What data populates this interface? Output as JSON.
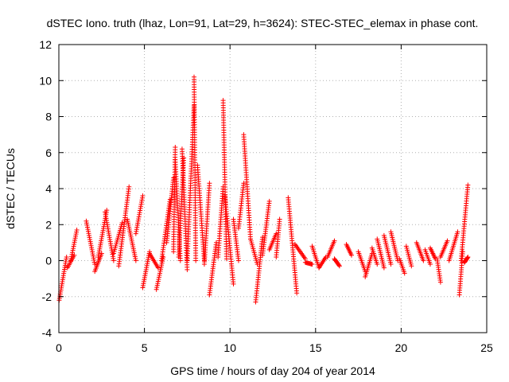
{
  "chart_data": {
    "type": "scatter",
    "marker": "plus",
    "title": "dSTEC Iono. truth (lhaz, Lon=91, Lat=29, h=3624): STEC-STEC_elemax in phase cont.",
    "xlabel": "GPS time / hours of day 204 of year 2014",
    "ylabel": "dSTEC  / TECUs",
    "xlim": [
      0,
      25
    ],
    "ylim": [
      -4,
      12
    ],
    "xticks": [
      0,
      5,
      10,
      15,
      20,
      25
    ],
    "yticks": [
      -4,
      -2,
      0,
      2,
      4,
      6,
      8,
      10,
      12
    ],
    "grid": true,
    "series": [
      {
        "color": "#ff0000",
        "arcs": [
          {
            "t0": 0.02,
            "t1": 0.45,
            "v0": -2.2,
            "v1": 0.2
          },
          {
            "t0": 0.5,
            "t1": 0.9,
            "v0": -0.4,
            "v1": 0.3
          },
          {
            "t0": 0.7,
            "t1": 1.05,
            "v0": 0.0,
            "v1": 1.7
          },
          {
            "t0": 1.6,
            "t1": 2.1,
            "v0": 2.2,
            "v1": -0.2
          },
          {
            "t0": 2.1,
            "t1": 2.5,
            "v0": -0.6,
            "v1": 0.4
          },
          {
            "t0": 2.3,
            "t1": 2.8,
            "v0": 0.2,
            "v1": 2.8
          },
          {
            "t0": 2.7,
            "t1": 3.2,
            "v0": 2.7,
            "v1": 0.0
          },
          {
            "t0": 3.2,
            "t1": 3.7,
            "v0": 0.4,
            "v1": 2.1
          },
          {
            "t0": 3.5,
            "t1": 4.1,
            "v0": -0.3,
            "v1": 4.1
          },
          {
            "t0": 4.0,
            "t1": 4.5,
            "v0": 2.3,
            "v1": 0.0
          },
          {
            "t0": 4.5,
            "t1": 4.9,
            "v0": 1.5,
            "v1": 3.6
          },
          {
            "t0": 4.9,
            "t1": 5.3,
            "v0": -1.5,
            "v1": 0.5
          },
          {
            "t0": 5.3,
            "t1": 5.8,
            "v0": 0.4,
            "v1": -0.4
          },
          {
            "t0": 5.7,
            "t1": 6.1,
            "v0": -1.6,
            "v1": 0.2
          },
          {
            "t0": 6.0,
            "t1": 6.5,
            "v0": 0.0,
            "v1": 3.4
          },
          {
            "t0": 6.3,
            "t1": 6.7,
            "v0": 1.0,
            "v1": 4.6
          },
          {
            "t0": 6.7,
            "t1": 6.8,
            "v0": 0.5,
            "v1": 6.3
          },
          {
            "t0": 6.8,
            "t1": 7.1,
            "v0": 5.6,
            "v1": 0.0
          },
          {
            "t0": 7.0,
            "t1": 7.3,
            "v0": 0.2,
            "v1": 5.7
          },
          {
            "t0": 7.2,
            "t1": 7.5,
            "v0": 6.2,
            "v1": -0.5
          },
          {
            "t0": 7.5,
            "t1": 7.9,
            "v0": 0.0,
            "v1": 8.6
          },
          {
            "t0": 7.9,
            "t1": 8.0,
            "v0": 10.2,
            "v1": 0.0
          },
          {
            "t0": 8.1,
            "t1": 8.5,
            "v0": 5.3,
            "v1": 0.0
          },
          {
            "t0": 8.5,
            "t1": 8.8,
            "v0": -0.2,
            "v1": 4.3
          },
          {
            "t0": 8.8,
            "t1": 9.2,
            "v0": -1.9,
            "v1": 1.0
          },
          {
            "t0": 9.3,
            "t1": 9.6,
            "v0": 0.2,
            "v1": 4.1
          },
          {
            "t0": 9.6,
            "t1": 9.8,
            "v0": 8.9,
            "v1": 0.1
          },
          {
            "t0": 9.7,
            "t1": 10.2,
            "v0": 3.6,
            "v1": -1.3
          },
          {
            "t0": 10.2,
            "t1": 10.5,
            "v0": 2.3,
            "v1": 0.0
          },
          {
            "t0": 10.5,
            "t1": 10.8,
            "v0": 1.8,
            "v1": 4.3
          },
          {
            "t0": 10.8,
            "t1": 11.2,
            "v0": 7.0,
            "v1": 1.2
          },
          {
            "t0": 11.2,
            "t1": 11.6,
            "v0": 1.2,
            "v1": -0.2
          },
          {
            "t0": 11.5,
            "t1": 11.9,
            "v0": -2.3,
            "v1": 1.3
          },
          {
            "t0": 11.9,
            "t1": 12.3,
            "v0": 0.3,
            "v1": 3.3
          },
          {
            "t0": 12.3,
            "t1": 12.7,
            "v0": 0.6,
            "v1": 1.5
          },
          {
            "t0": 12.7,
            "t1": 12.9,
            "v0": 0.2,
            "v1": 2.3
          },
          {
            "t0": 13.4,
            "t1": 13.9,
            "v0": 3.5,
            "v1": -1.8
          },
          {
            "t0": 13.8,
            "t1": 14.4,
            "v0": 0.9,
            "v1": 0.1
          },
          {
            "t0": 14.4,
            "t1": 14.8,
            "v0": -0.1,
            "v1": -0.2
          },
          {
            "t0": 14.8,
            "t1": 15.2,
            "v0": 0.8,
            "v1": -0.4
          },
          {
            "t0": 15.2,
            "t1": 15.6,
            "v0": -0.4,
            "v1": 0.2
          },
          {
            "t0": 15.7,
            "t1": 16.1,
            "v0": 0.2,
            "v1": 1.1
          },
          {
            "t0": 16.1,
            "t1": 16.4,
            "v0": 0.1,
            "v1": -0.3
          },
          {
            "t0": 16.8,
            "t1": 17.1,
            "v0": 0.9,
            "v1": 0.3
          },
          {
            "t0": 17.5,
            "t1": 17.9,
            "v0": 0.5,
            "v1": -0.6
          },
          {
            "t0": 17.9,
            "t1": 18.3,
            "v0": -0.9,
            "v1": 0.4
          },
          {
            "t0": 18.3,
            "t1": 18.6,
            "v0": 0.7,
            "v1": -0.2
          },
          {
            "t0": 18.6,
            "t1": 19.0,
            "v0": 1.2,
            "v1": -0.4
          },
          {
            "t0": 19.0,
            "t1": 19.4,
            "v0": 1.4,
            "v1": -0.2
          },
          {
            "t0": 19.4,
            "t1": 19.8,
            "v0": 1.6,
            "v1": 0.0
          },
          {
            "t0": 19.9,
            "t1": 20.2,
            "v0": 0.1,
            "v1": -0.7
          },
          {
            "t0": 20.3,
            "t1": 20.6,
            "v0": 0.8,
            "v1": -0.3
          },
          {
            "t0": 20.9,
            "t1": 21.3,
            "v0": 1.0,
            "v1": 0.0
          },
          {
            "t0": 21.4,
            "t1": 21.7,
            "v0": 0.6,
            "v1": -0.2
          },
          {
            "t0": 21.7,
            "t1": 22.0,
            "v0": 0.7,
            "v1": 0.1
          },
          {
            "t0": 22.1,
            "t1": 22.3,
            "v0": 0.1,
            "v1": -1.2
          },
          {
            "t0": 22.3,
            "t1": 22.7,
            "v0": 0.2,
            "v1": 1.1
          },
          {
            "t0": 22.8,
            "t1": 23.3,
            "v0": 0.0,
            "v1": 1.6
          },
          {
            "t0": 23.4,
            "t1": 23.6,
            "v0": -1.9,
            "v1": 0.5
          },
          {
            "t0": 23.5,
            "t1": 23.9,
            "v0": 0.0,
            "v1": 4.2
          },
          {
            "t0": 23.7,
            "t1": 23.9,
            "v0": -0.1,
            "v1": 0.2
          }
        ]
      }
    ]
  }
}
